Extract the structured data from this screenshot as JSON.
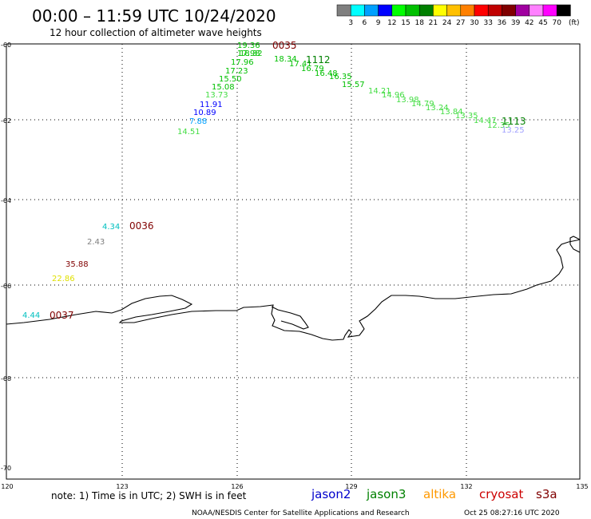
{
  "header": {
    "title": "00:00 – 11:59 UTC 10/24/2020",
    "subtitle": "12 hour collection of altimeter wave heights"
  },
  "legend": {
    "colors": [
      "#7f7f7f",
      "#00ffff",
      "#00a0ff",
      "#0000ff",
      "#00ff00",
      "#00c000",
      "#008000",
      "#ffff00",
      "#ffc000",
      "#ff8000",
      "#ff0000",
      "#c00000",
      "#800000",
      "#a000a0",
      "#ff80ff",
      "#ff00ff",
      "#000000"
    ],
    "ticks": [
      "3",
      "6",
      "9",
      "12",
      "15",
      "18",
      "21",
      "24",
      "27",
      "30",
      "33",
      "36",
      "39",
      "42",
      "45",
      "70"
    ],
    "unit": "(ft)"
  },
  "map": {
    "lon_range": [
      120,
      135
    ],
    "lat_range": [
      -70,
      -60
    ],
    "x_ticks": [
      "120",
      "123",
      "126",
      "129",
      "132",
      "135"
    ],
    "y_ticks": [
      "-60",
      "-62",
      "-64",
      "-66",
      "-68",
      "-70"
    ],
    "grid": "dotted"
  },
  "times": [
    {
      "label": "0035",
      "color": "#800000"
    },
    {
      "label": "1112",
      "color": "#008000"
    },
    {
      "label": "1113",
      "color": "#008000"
    },
    {
      "label": "0036",
      "color": "#800000"
    },
    {
      "label": "0037",
      "color": "#800000"
    }
  ],
  "observations": [
    {
      "value": "19.36",
      "color": "#00c000"
    },
    {
      "value": "18.32",
      "color": "#00c000"
    },
    {
      "value": "17.98",
      "color": "#00c000"
    },
    {
      "value": "17.96",
      "color": "#00c000"
    },
    {
      "value": "17.23",
      "color": "#00c000"
    },
    {
      "value": "15.50",
      "color": "#00c000"
    },
    {
      "value": "15.08",
      "color": "#00c000"
    },
    {
      "value": "13.73",
      "color": "#44dd44"
    },
    {
      "value": "11.91",
      "color": "#0000ff"
    },
    {
      "value": "10.89",
      "color": "#0000ff"
    },
    {
      "value": "7.88",
      "color": "#00a0ff"
    },
    {
      "value": "14.51",
      "color": "#44dd44"
    },
    {
      "value": "18.34",
      "color": "#00c000"
    },
    {
      "value": "17.41",
      "color": "#00c000"
    },
    {
      "value": "16.79",
      "color": "#00c000"
    },
    {
      "value": "16.48",
      "color": "#00c000"
    },
    {
      "value": "16.35",
      "color": "#00c000"
    },
    {
      "value": "15.57",
      "color": "#00c000"
    },
    {
      "value": "14.21",
      "color": "#44dd44"
    },
    {
      "value": "14.96",
      "color": "#44dd44"
    },
    {
      "value": "13.98",
      "color": "#44dd44"
    },
    {
      "value": "14.79",
      "color": "#44dd44"
    },
    {
      "value": "13.24",
      "color": "#44dd44"
    },
    {
      "value": "13.84",
      "color": "#44dd44"
    },
    {
      "value": "13.35",
      "color": "#44dd44"
    },
    {
      "value": "14.47",
      "color": "#44dd44"
    },
    {
      "value": "12.35",
      "color": "#44dd44"
    },
    {
      "value": "13.25",
      "color": "#a0a0ff"
    },
    {
      "value": "4.34",
      "color": "#00c0c0"
    },
    {
      "value": "2.43",
      "color": "#7f7f7f"
    },
    {
      "value": "35.88",
      "color": "#800000"
    },
    {
      "value": "22.86",
      "color": "#e0e000"
    },
    {
      "value": "4.44",
      "color": "#00c0c0"
    }
  ],
  "footer": {
    "note": "note: 1) Time is in UTC; 2) SWH is in feet",
    "satellites": [
      {
        "name": "jason2",
        "color": "#0000cc"
      },
      {
        "name": "jason3",
        "color": "#008000"
      },
      {
        "name": "altika",
        "color": "#ff9900"
      },
      {
        "name": "cryosat",
        "color": "#cc0000"
      },
      {
        "name": "s3a",
        "color": "#800000"
      }
    ],
    "credit": "NOAA/NESDIS Center for Satellite Applications and Research",
    "timestamp": "Oct 25 08:27:16 UTC 2020"
  }
}
